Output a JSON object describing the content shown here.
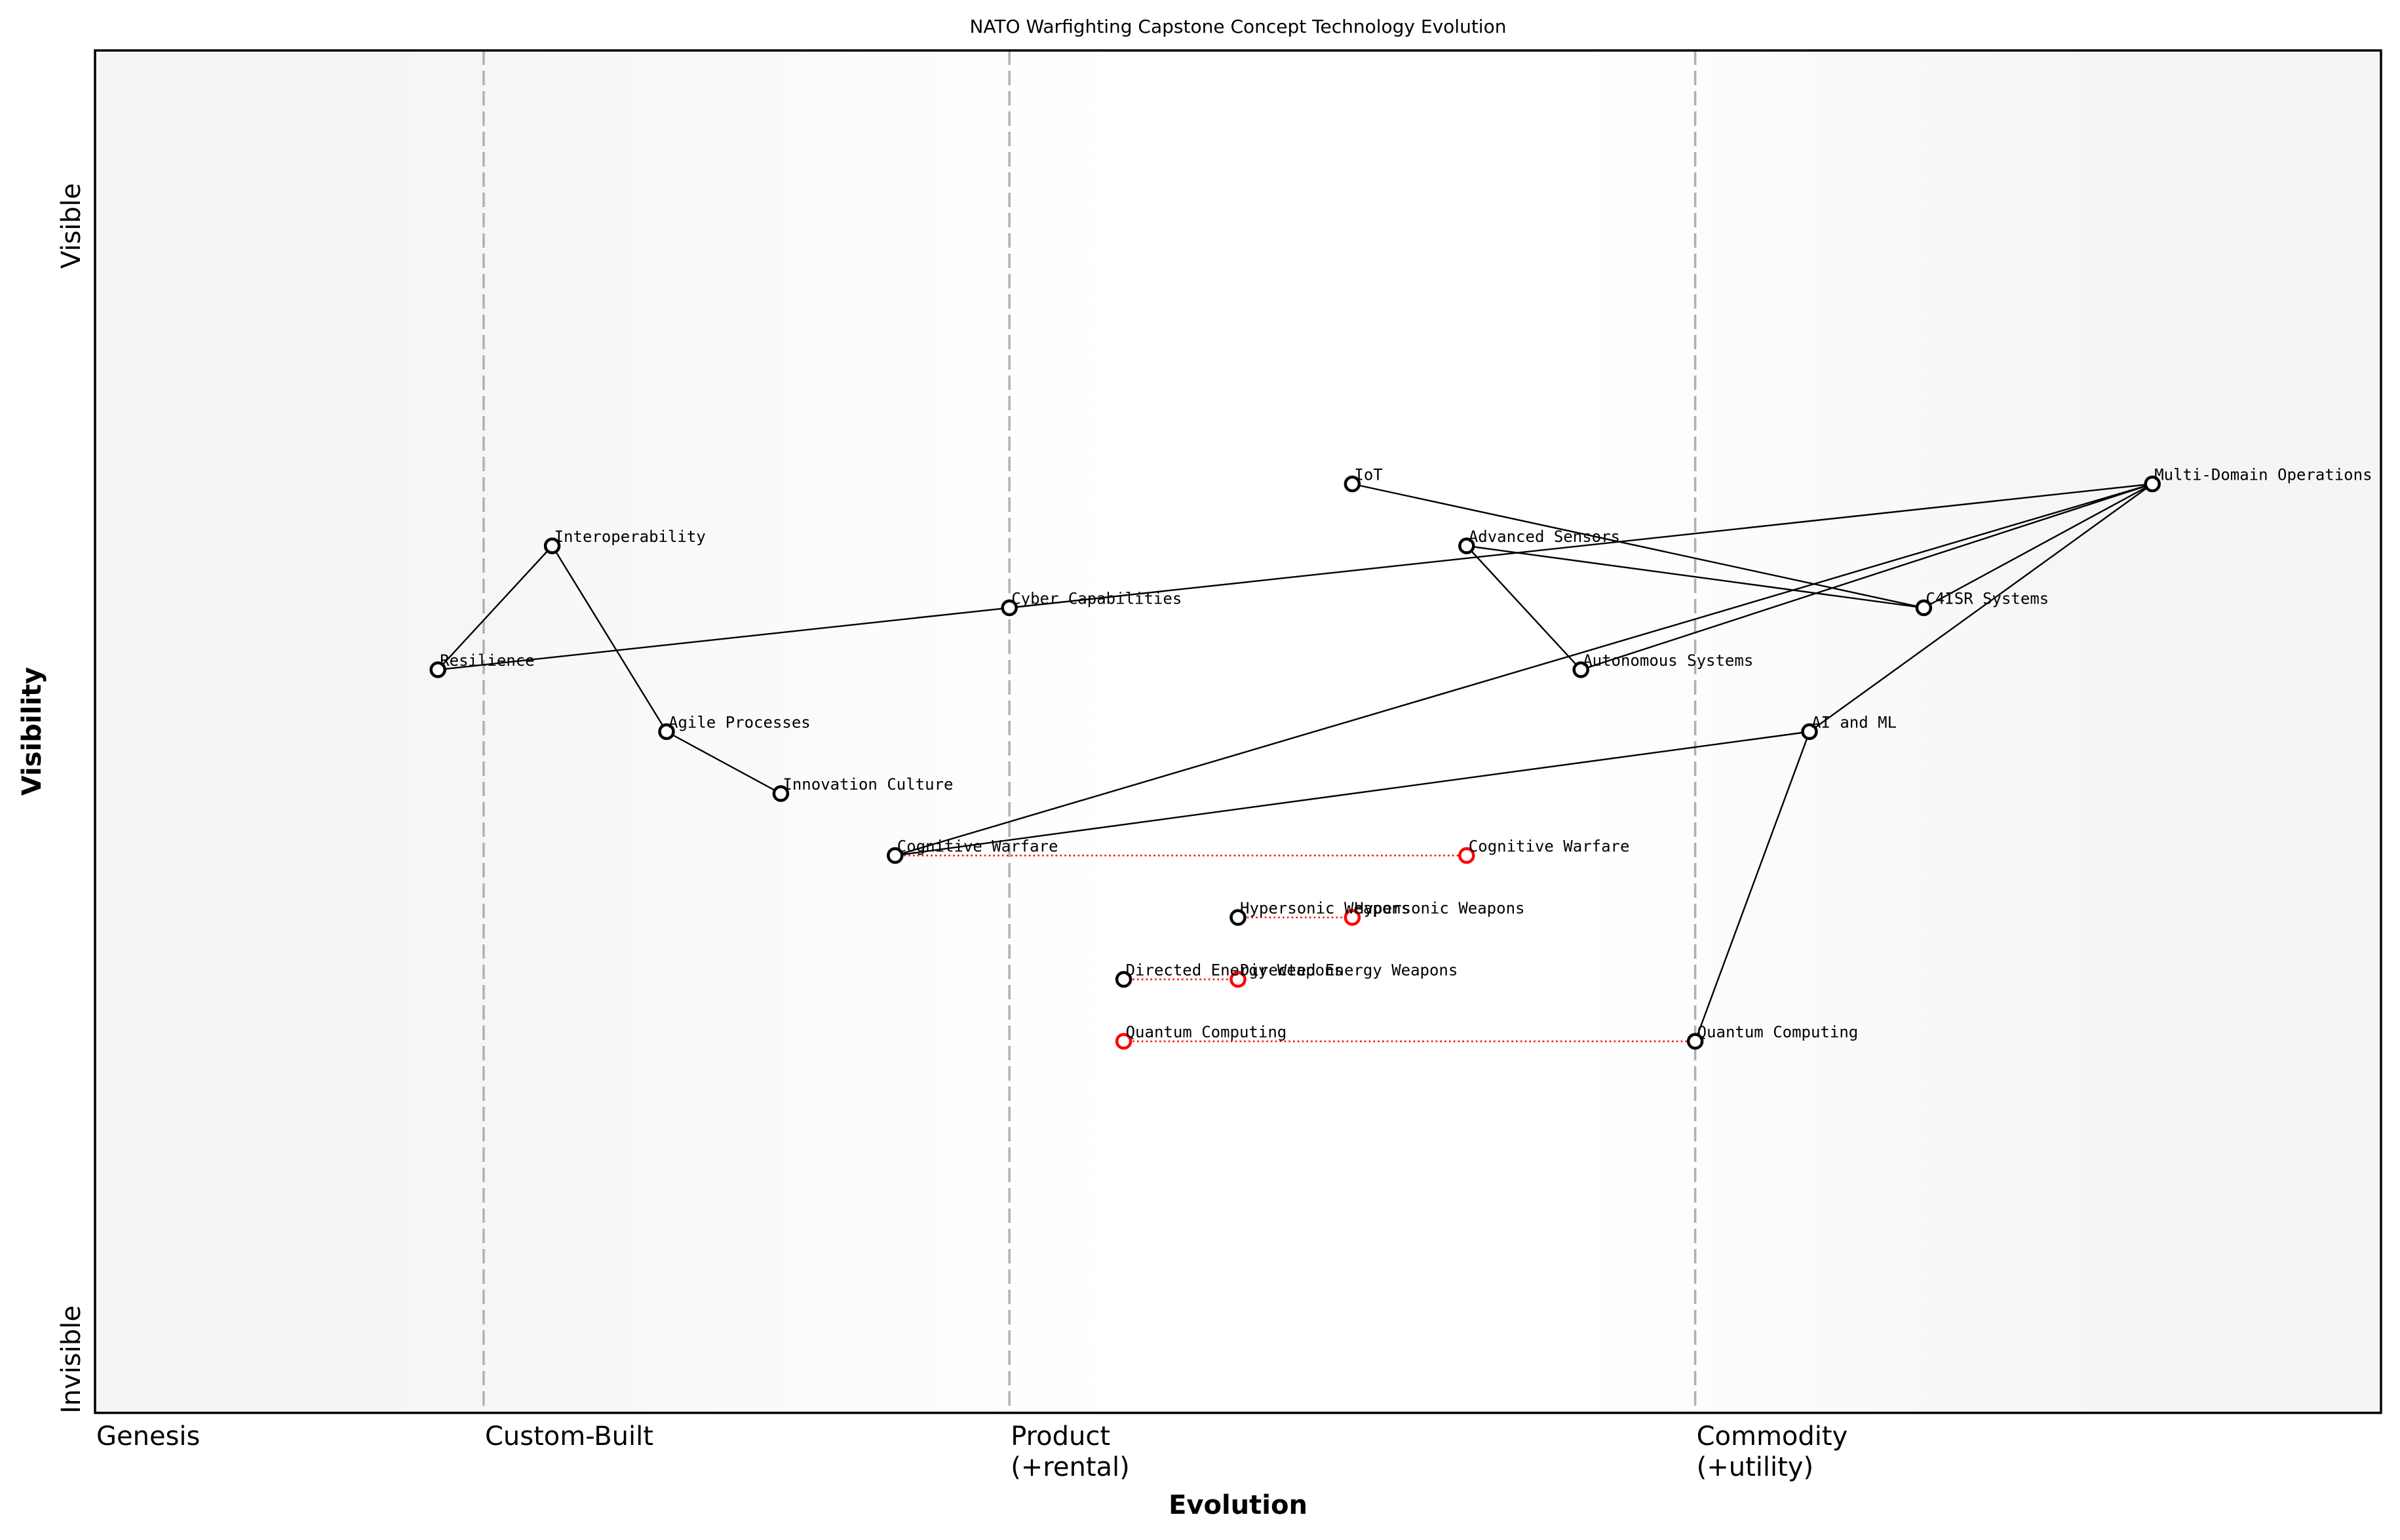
{
  "chart_data": {
    "type": "scatter",
    "subtype": "wardley-map",
    "title": "NATO Warfighting Capstone Concept Technology Evolution",
    "xlabel": "Evolution",
    "ylabel": "Visibility",
    "xlim": [
      0,
      1
    ],
    "ylim": [
      -0.05,
      1.05
    ],
    "grid": false,
    "legend": null,
    "x_tick_labels": [
      {
        "label": "Genesis",
        "x": 0.0
      },
      {
        "label": "Custom-Built",
        "x": 0.17
      },
      {
        "label": "Product\n(+rental)",
        "x": 0.4
      },
      {
        "label": "Commodity\n(+utility)",
        "x": 0.7
      }
    ],
    "y_tick_labels": [
      {
        "label": "Visible",
        "position": "top"
      },
      {
        "label": "Invisible",
        "position": "bottom"
      }
    ],
    "stage_boundaries": [
      0.17,
      0.4,
      0.7
    ],
    "nodes": [
      {
        "id": "resilience",
        "label": "Resilience",
        "evolution": 0.15,
        "visibility": 0.55,
        "color": "#000000"
      },
      {
        "id": "interoperability",
        "label": "Interoperability",
        "evolution": 0.2,
        "visibility": 0.65,
        "color": "#000000"
      },
      {
        "id": "agile",
        "label": "Agile Processes",
        "evolution": 0.25,
        "visibility": 0.5,
        "color": "#000000"
      },
      {
        "id": "innovation",
        "label": "Innovation Culture",
        "evolution": 0.3,
        "visibility": 0.45,
        "color": "#000000"
      },
      {
        "id": "cognitive",
        "label": "Cognitive Warfare",
        "evolution": 0.35,
        "visibility": 0.4,
        "color": "#000000"
      },
      {
        "id": "cyber",
        "label": "Cyber Capabilities",
        "evolution": 0.4,
        "visibility": 0.6,
        "color": "#000000"
      },
      {
        "id": "dew",
        "label": "Directed Energy Weapons",
        "evolution": 0.45,
        "visibility": 0.3,
        "color": "#000000"
      },
      {
        "id": "quantum_future",
        "label": "Quantum Computing",
        "evolution": 0.45,
        "visibility": 0.25,
        "color": "#ff0000"
      },
      {
        "id": "hypersonic",
        "label": "Hypersonic Weapons",
        "evolution": 0.5,
        "visibility": 0.35,
        "color": "#000000"
      },
      {
        "id": "dew_future",
        "label": "Directed Energy Weapons",
        "evolution": 0.5,
        "visibility": 0.3,
        "color": "#ff0000"
      },
      {
        "id": "iot",
        "label": "IoT",
        "evolution": 0.55,
        "visibility": 0.7,
        "color": "#000000"
      },
      {
        "id": "hypersonic_future",
        "label": "Hypersonic Weapons",
        "evolution": 0.55,
        "visibility": 0.35,
        "color": "#ff0000"
      },
      {
        "id": "sensors",
        "label": "Advanced Sensors",
        "evolution": 0.6,
        "visibility": 0.65,
        "color": "#000000"
      },
      {
        "id": "cognitive_future",
        "label": "Cognitive Warfare",
        "evolution": 0.6,
        "visibility": 0.4,
        "color": "#ff0000"
      },
      {
        "id": "autonomous",
        "label": "Autonomous Systems",
        "evolution": 0.65,
        "visibility": 0.55,
        "color": "#000000"
      },
      {
        "id": "quantum",
        "label": "Quantum Computing",
        "evolution": 0.7,
        "visibility": 0.25,
        "color": "#000000"
      },
      {
        "id": "aiml",
        "label": "AI and ML",
        "evolution": 0.75,
        "visibility": 0.5,
        "color": "#000000"
      },
      {
        "id": "c4isr",
        "label": "C4ISR Systems",
        "evolution": 0.8,
        "visibility": 0.6,
        "color": "#000000"
      },
      {
        "id": "mdo",
        "label": "Multi-Domain Operations",
        "evolution": 0.9,
        "visibility": 0.7,
        "color": "#000000"
      }
    ],
    "edges": [
      [
        "resilience",
        "interoperability"
      ],
      [
        "interoperability",
        "agile"
      ],
      [
        "agile",
        "innovation"
      ],
      [
        "resilience",
        "cyber"
      ],
      [
        "cyber",
        "mdo"
      ],
      [
        "iot",
        "c4isr"
      ],
      [
        "sensors",
        "c4isr"
      ],
      [
        "sensors",
        "autonomous"
      ],
      [
        "mdo",
        "cognitive"
      ],
      [
        "mdo",
        "autonomous"
      ],
      [
        "mdo",
        "c4isr"
      ],
      [
        "mdo",
        "aiml"
      ],
      [
        "cognitive",
        "aiml"
      ],
      [
        "aiml",
        "quantum"
      ]
    ],
    "evolution_lines": [
      [
        "cognitive",
        "cognitive_future"
      ],
      [
        "hypersonic",
        "hypersonic_future"
      ],
      [
        "dew",
        "dew_future"
      ],
      [
        "quantum_future",
        "quantum"
      ]
    ]
  },
  "colors": {
    "background_edge": "#f5f5f5",
    "background_center": "#ffffff",
    "stage_line": "#b0b0b0",
    "evolution_line": "#ff0000",
    "node_current": "#000000",
    "node_future": "#ff0000"
  }
}
